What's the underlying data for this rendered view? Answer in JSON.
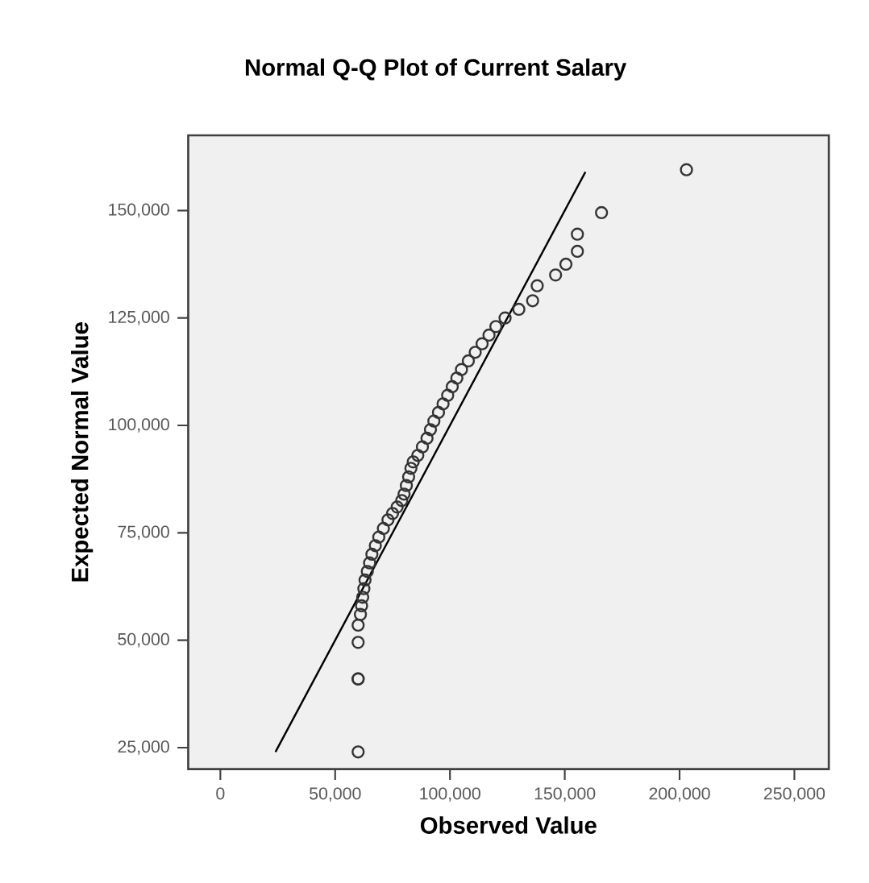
{
  "chart_data": {
    "type": "scatter",
    "title": "Normal Q-Q Plot of Current Salary",
    "xlabel": "Observed Value",
    "ylabel": "Expected Normal Value",
    "xlim": [
      -14000,
      265000
    ],
    "ylim": [
      20000,
      167500
    ],
    "xticks": [
      0,
      {
        "value": 50000,
        "label": "50,000"
      },
      {
        "value": 100000,
        "label": "100,000"
      },
      {
        "value": 150000,
        "label": "150,000"
      },
      {
        "value": 200000,
        "label": "200,000"
      },
      {
        "value": 250000,
        "label": "250,000"
      }
    ],
    "yticks": [
      {
        "value": 25000,
        "label": "25,000"
      },
      {
        "value": 50000,
        "label": "50,000"
      },
      {
        "value": 75000,
        "label": "75,000"
      },
      {
        "value": 100000,
        "label": "100,000"
      },
      {
        "value": 125000,
        "label": "125,000"
      },
      {
        "value": 150000,
        "label": "150,000"
      }
    ],
    "grid": false,
    "series": [
      {
        "marker": "circle",
        "color": "#333333",
        "x": [
          60000,
          60000,
          60000,
          60000,
          60000,
          61000,
          61500,
          62000,
          62500,
          63000,
          64000,
          65000,
          66000,
          67500,
          69000,
          71000,
          73000,
          75000,
          77000,
          79000,
          80000,
          81000,
          82000,
          83000,
          84000,
          86000,
          88000,
          90000,
          91500,
          93000,
          95000,
          97000,
          99000,
          101000,
          103000,
          105000,
          108000,
          111000,
          114000,
          117000,
          120000,
          124000,
          130000,
          136000,
          138000,
          146000,
          150500,
          155500,
          155500,
          166000,
          203000
        ],
        "values": [
          24000,
          41000,
          41000,
          49500,
          53500,
          56000,
          58000,
          60000,
          62000,
          64000,
          66000,
          68000,
          70000,
          72000,
          74000,
          76000,
          78000,
          79500,
          81000,
          82500,
          84000,
          86000,
          88000,
          90000,
          91500,
          93000,
          95000,
          97000,
          99000,
          101000,
          103000,
          105000,
          107000,
          109000,
          111000,
          113000,
          115000,
          117000,
          119000,
          121000,
          123000,
          125000,
          127000,
          129000,
          132500,
          135000,
          137500,
          140500,
          144500,
          149500,
          159500
        ]
      },
      {
        "type": "line",
        "line_style": "solid",
        "color": "#000000",
        "x": [
          24000,
          159000
        ],
        "values": [
          24000,
          159000
        ]
      }
    ]
  }
}
